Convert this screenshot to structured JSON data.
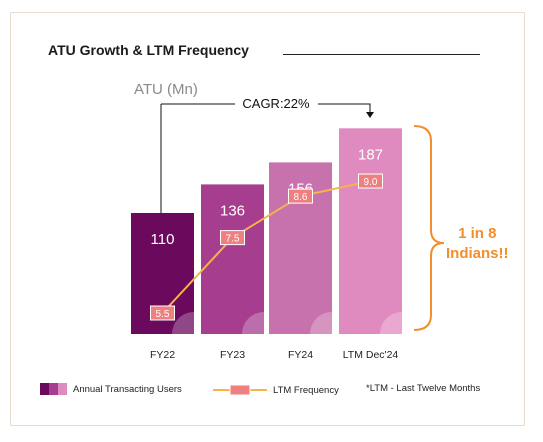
{
  "chart_data": {
    "type": "bar",
    "title": "ATU Growth & LTM Frequency",
    "ylabel": "ATU (Mn)",
    "categories": [
      "FY22",
      "FY23",
      "FY24",
      "LTM Dec'24"
    ],
    "series": [
      {
        "name": "Annual Transacting Users",
        "values": [
          110,
          136,
          156,
          187
        ]
      },
      {
        "name": "LTM Frequency",
        "values": [
          5.5,
          7.5,
          8.6,
          9.0
        ]
      }
    ],
    "value_labels": [
      "110",
      "136",
      "156",
      "187"
    ],
    "frequency_labels": [
      "5.5",
      "7.5",
      "8.6",
      "9.0"
    ],
    "cagr_label": "CAGR:22%",
    "annotation": [
      "1 in 8",
      "Indians!!"
    ],
    "footnote": "*LTM - Last Twelve Months",
    "legend_position": "bottom",
    "colors": {
      "bars": [
        "#6b0a5c",
        "#a63d8f",
        "#c872ad",
        "#e08bbf"
      ],
      "line": "#f7b34a",
      "marker_fill": "#f08080",
      "marker_border": "#ffffff",
      "accent": "#f28e2b"
    }
  }
}
